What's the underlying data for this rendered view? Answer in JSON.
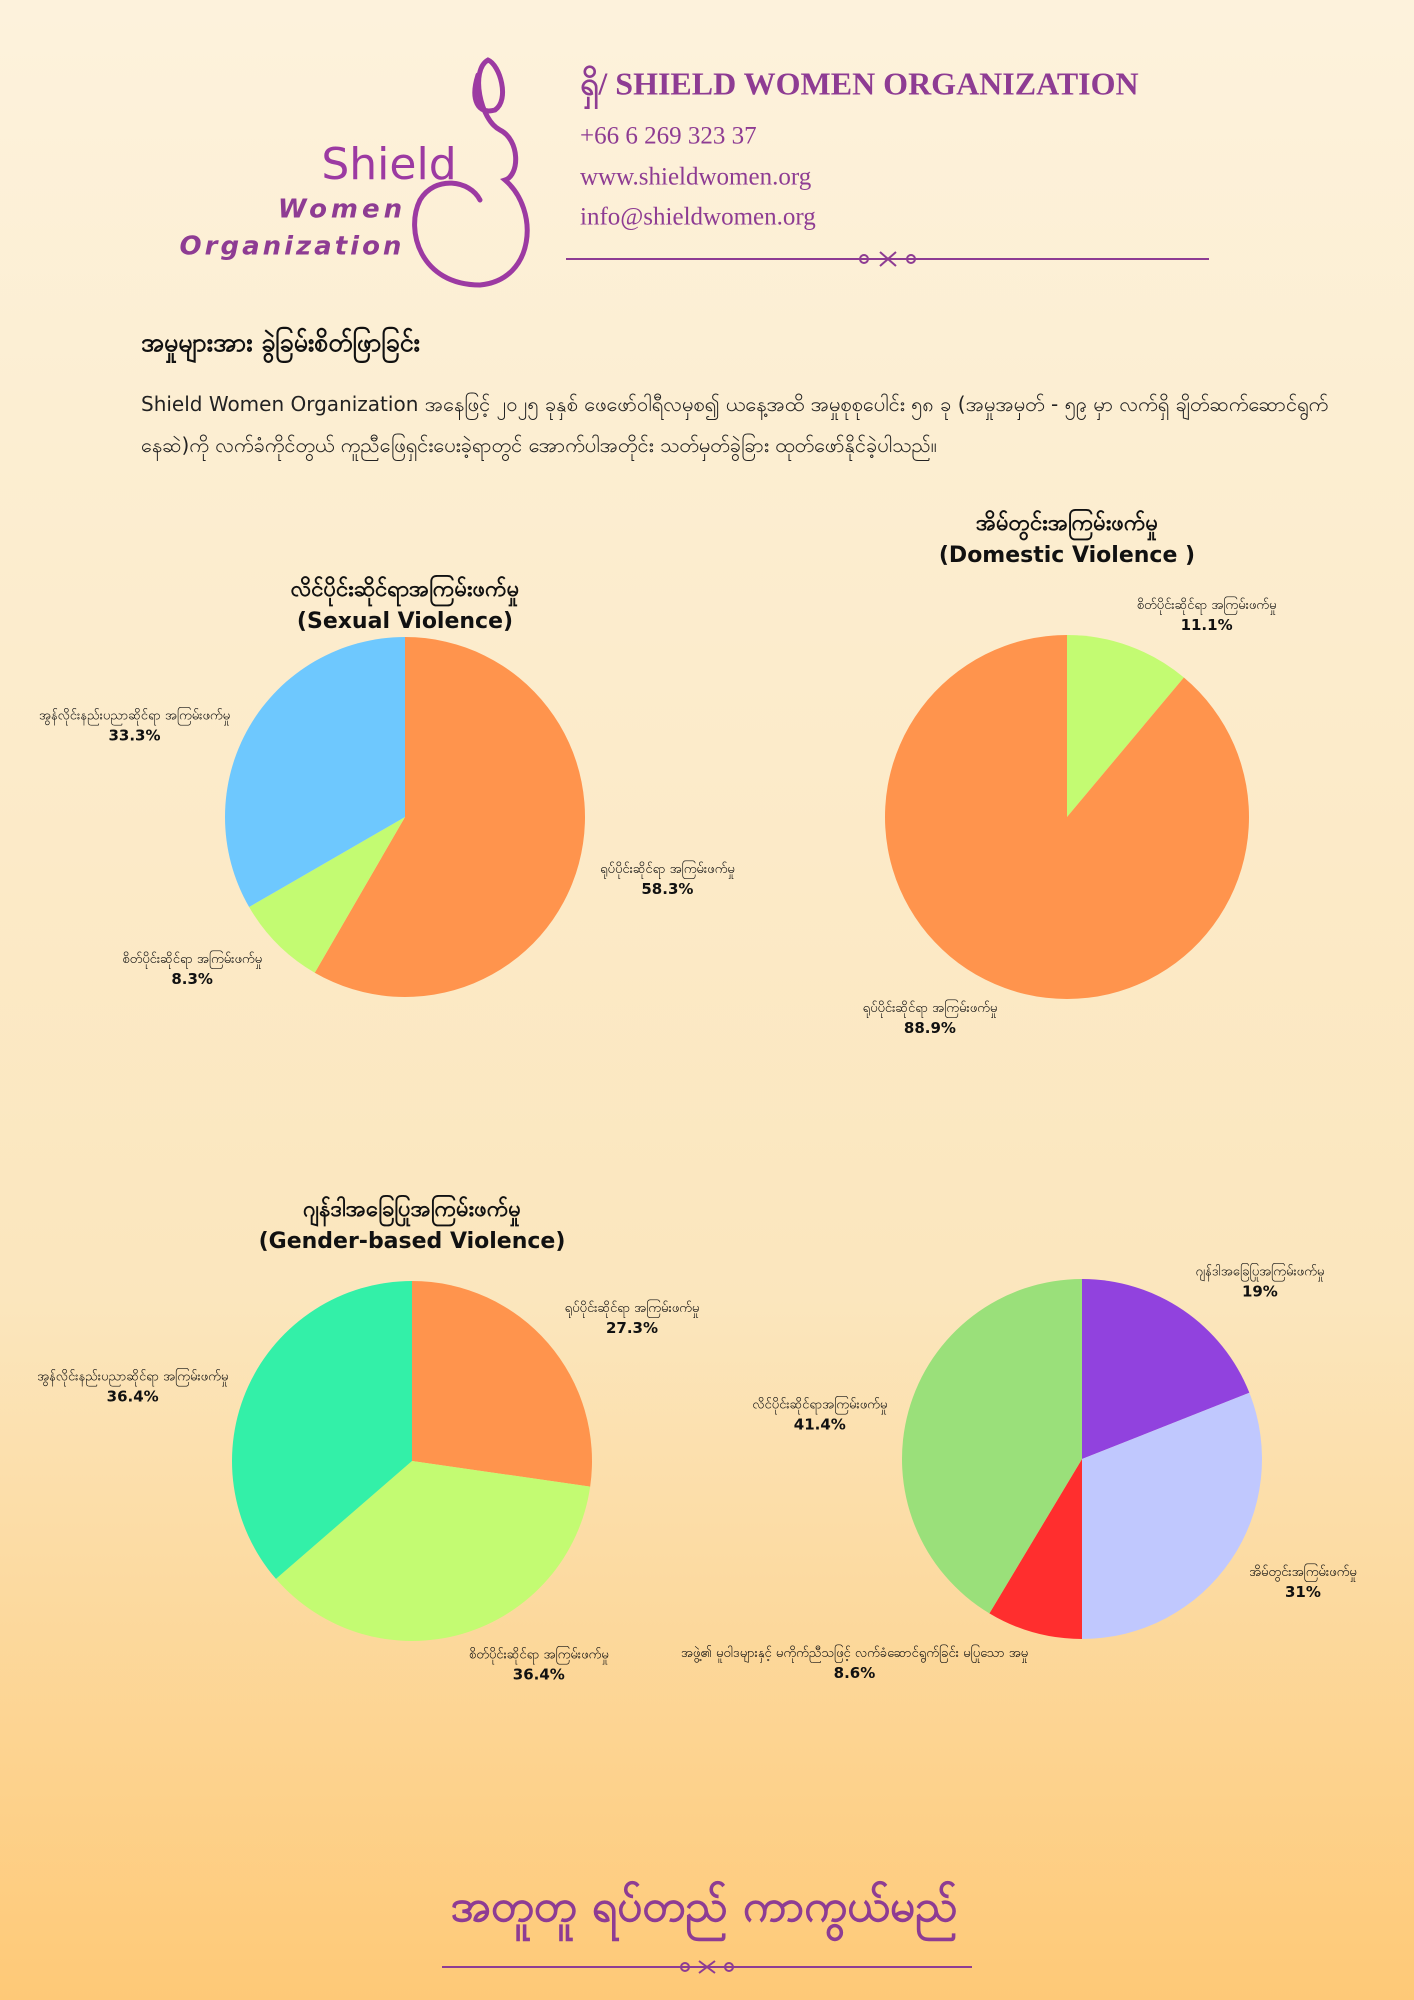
{
  "header": {
    "logo": {
      "line1": "Shield",
      "line2": "Women",
      "line3": "Organization"
    },
    "org_name": "ရှိ/ SHIELD WOMEN ORGANIZATION",
    "phone": "+66 6 269 323 37",
    "website": "www.shieldwomen.org",
    "email": "info@shieldwomen.org"
  },
  "intro": {
    "heading": "အမှုများအား ခွဲခြမ်းစိတ်ဖြာခြင်း",
    "paragraph": "Shield Women Organization အနေဖြင့် ၂၀၂၅ ခုနှစ် ဖေဖော်ဝါရီလမှစ၍ ယနေ့အထိ အမှုစုစုပေါင်း ၅၈ ခု (အမှုအမှတ် - ၅၉ မှာ လက်ရှိ ချိတ်ဆက်ဆောင်ရွက်နေဆဲ)ကို လက်ခံကိုင်တွယ် ကူညီဖြေရှင်းပေးခဲ့ရာတွင် အောက်ပါအတိုင်း သတ်မှတ်ခွဲခြား ထုတ်ဖော်နိုင်ခဲ့ပါသည်။"
  },
  "chart_data": [
    {
      "type": "pie",
      "title": "လိင်ပိုင်းဆိုင်ရာအကြမ်းဖက်မှု",
      "subtitle": "(Sexual Violence)",
      "categories": [
        "ရုပ်ပိုင်းဆိုင်ရာ အကြမ်းဖက်မှု",
        "စိတ်ပိုင်းဆိုင်ရာ အကြမ်းဖက်မှု",
        "အွန်လိုင်းနည်းပညာဆိုင်ရာ အကြမ်းဖက်မှု"
      ],
      "values": [
        58.3,
        8.3,
        33.3
      ],
      "value_labels": [
        "58.3%",
        "8.3%",
        "33.3%"
      ],
      "colors": [
        "#ff944d",
        "#c3fb72",
        "#6ec8fe"
      ]
    },
    {
      "type": "pie",
      "title": "အိမ်တွင်းအကြမ်းဖက်မှု",
      "subtitle": "(Domestic Violence )",
      "categories": [
        "စိတ်ပိုင်းဆိုင်ရာ အကြမ်းဖက်မှု",
        "ရုပ်ပိုင်းဆိုင်ရာ အကြမ်းဖက်မှု"
      ],
      "values": [
        11.1,
        88.9
      ],
      "value_labels": [
        "11.1%",
        "88.9%"
      ],
      "colors": [
        "#c3fb72",
        "#ff944d"
      ]
    },
    {
      "type": "pie",
      "title": "ဂျန်ဒါအခြေပြုအကြမ်းဖက်မှု",
      "subtitle": "(Gender-based Violence)",
      "categories": [
        "ရုပ်ပိုင်းဆိုင်ရာ အကြမ်းဖက်မှု",
        "စိတ်ပိုင်းဆိုင်ရာ အကြမ်းဖက်မှု",
        "အွန်လိုင်းနည်းပညာဆိုင်ရာ အကြမ်းဖက်မှု"
      ],
      "values": [
        27.3,
        36.4,
        36.4
      ],
      "value_labels": [
        "27.3%",
        "36.4%",
        "36.4%"
      ],
      "colors": [
        "#ff944d",
        "#c3fb72",
        "#33f0a8"
      ]
    },
    {
      "type": "pie",
      "categories": [
        "ဂျန်ဒါအခြေပြုအကြမ်းဖက်မှု",
        "အိမ်တွင်းအကြမ်းဖက်မှု",
        "အဖွဲ့၏ မူဝါဒများနှင့် မကိုက်ညီသဖြင့် လက်ခံဆောင်ရွက်ခြင်း မပြုသော အမှု",
        "လိင်ပိုင်းဆိုင်ရာအကြမ်းဖက်မှု"
      ],
      "values": [
        19,
        31,
        8.6,
        41.4
      ],
      "value_labels": [
        "19%",
        "31%",
        "8.6%",
        "41.4%"
      ],
      "colors": [
        "#9142de",
        "#c0c8fe",
        "#ff2e2e",
        "#9ae07a"
      ]
    }
  ],
  "footer": {
    "slogan": "အတူတူ ရပ်တည် ကာကွယ်မည်"
  }
}
